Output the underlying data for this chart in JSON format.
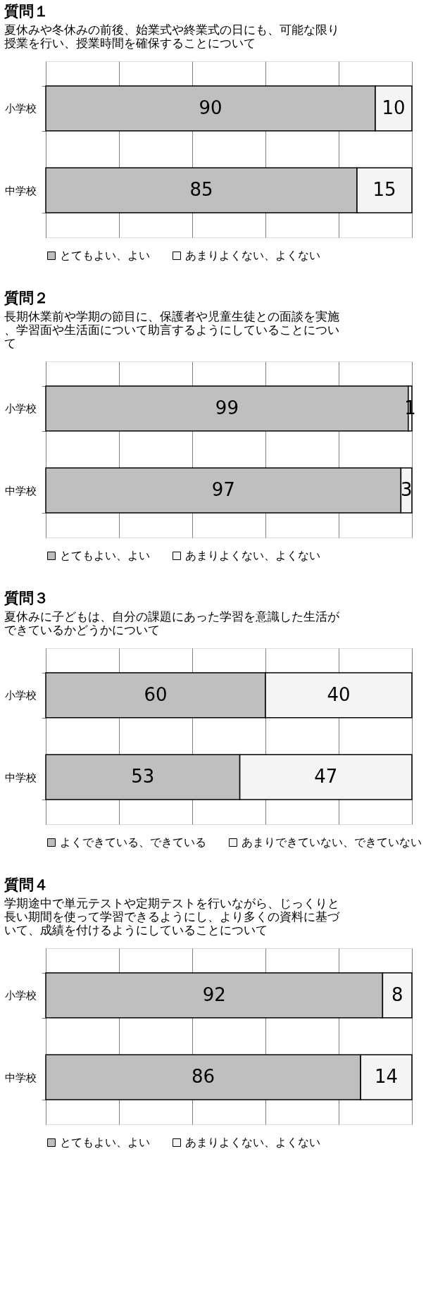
{
  "chart_data": [
    {
      "type": "bar",
      "orientation": "horizontal",
      "stacked": true,
      "title": "質問１",
      "subtitle": "夏休みや冬休みの前後、始業式や終業式の日にも、可能な限り授業を行い、授業時間を確保することについて",
      "categories": [
        "小学校",
        "中学校"
      ],
      "series": [
        {
          "name": "とてもよい、よい",
          "color": "#bfbfbf",
          "values": [
            90,
            85
          ]
        },
        {
          "name": "あまりよくない、よくない",
          "color": "#f4f4f4",
          "values": [
            10,
            15
          ]
        }
      ],
      "xlim": [
        0,
        100
      ],
      "xticks": [
        {
          "value": 0,
          "label": null
        },
        {
          "value": 20,
          "label": null
        },
        {
          "value": 40,
          "label": null
        },
        {
          "value": 60,
          "label": null
        },
        {
          "value": 80,
          "label": null
        },
        {
          "value": 100,
          "label": null
        }
      ],
      "tick_labels": "y",
      "grid": "x",
      "data_labels": true,
      "legend": "bottom"
    },
    {
      "type": "bar",
      "orientation": "horizontal",
      "stacked": true,
      "title": "質問２",
      "subtitle": "長期休業前や学期の節目に、保護者や児童生徒との面談を実施、学習面や生活面について助言するようにしていることについて",
      "categories": [
        "小学校",
        "中学校"
      ],
      "series": [
        {
          "name": "とてもよい、よい",
          "color": "#bfbfbf",
          "values": [
            99,
            97
          ]
        },
        {
          "name": "あまりよくない、よくない",
          "color": "#f4f4f4",
          "values": [
            1,
            3
          ]
        }
      ],
      "xlim": [
        0,
        100
      ],
      "xticks": [
        {
          "value": 0,
          "label": null
        },
        {
          "value": 20,
          "label": null
        },
        {
          "value": 40,
          "label": null
        },
        {
          "value": 60,
          "label": null
        },
        {
          "value": 80,
          "label": null
        },
        {
          "value": 100,
          "label": null
        }
      ],
      "tick_labels": "y",
      "grid": "x",
      "data_labels": true,
      "legend": "bottom"
    },
    {
      "type": "bar",
      "orientation": "horizontal",
      "stacked": true,
      "title": "質問３",
      "subtitle": "夏休みに子どもは、自分の課題にあった学習を意識した生活ができているかどうかについて",
      "categories": [
        "小学校",
        "中学校"
      ],
      "series": [
        {
          "name": "よくできている、できている",
          "color": "#bfbfbf",
          "values": [
            60,
            53
          ]
        },
        {
          "name": "あまりできていない、できていない",
          "color": "#f4f4f4",
          "values": [
            40,
            47
          ]
        }
      ],
      "xlim": [
        0,
        100
      ],
      "xticks": [
        {
          "value": 0,
          "label": null
        },
        {
          "value": 20,
          "label": null
        },
        {
          "value": 40,
          "label": null
        },
        {
          "value": 60,
          "label": null
        },
        {
          "value": 80,
          "label": null
        },
        {
          "value": 100,
          "label": null
        }
      ],
      "tick_labels": "y",
      "grid": "x",
      "data_labels": true,
      "legend": "bottom"
    },
    {
      "type": "bar",
      "orientation": "horizontal",
      "stacked": true,
      "title": "質問４",
      "subtitle": "学期途中で単元テストや定期テストを行いながら、じっくりと長い期間を使って学習できるようにし、より多くの資料に基づいて、成績を付けるようにしていることについて",
      "categories": [
        "小学校",
        "中学校"
      ],
      "series": [
        {
          "name": "とてもよい、よい",
          "color": "#bfbfbf",
          "values": [
            92,
            86
          ]
        },
        {
          "name": "あまりよくない、よくない",
          "color": "#f4f4f4",
          "values": [
            8,
            14
          ]
        }
      ],
      "xlim": [
        0,
        100
      ],
      "xticks": [
        {
          "value": 0,
          "label": null
        },
        {
          "value": 20,
          "label": null
        },
        {
          "value": 40,
          "label": null
        },
        {
          "value": 60,
          "label": null
        },
        {
          "value": 80,
          "label": null
        },
        {
          "value": 100,
          "label": null
        }
      ],
      "tick_labels": "y",
      "grid": "x",
      "data_labels": true,
      "legend": "bottom"
    }
  ]
}
